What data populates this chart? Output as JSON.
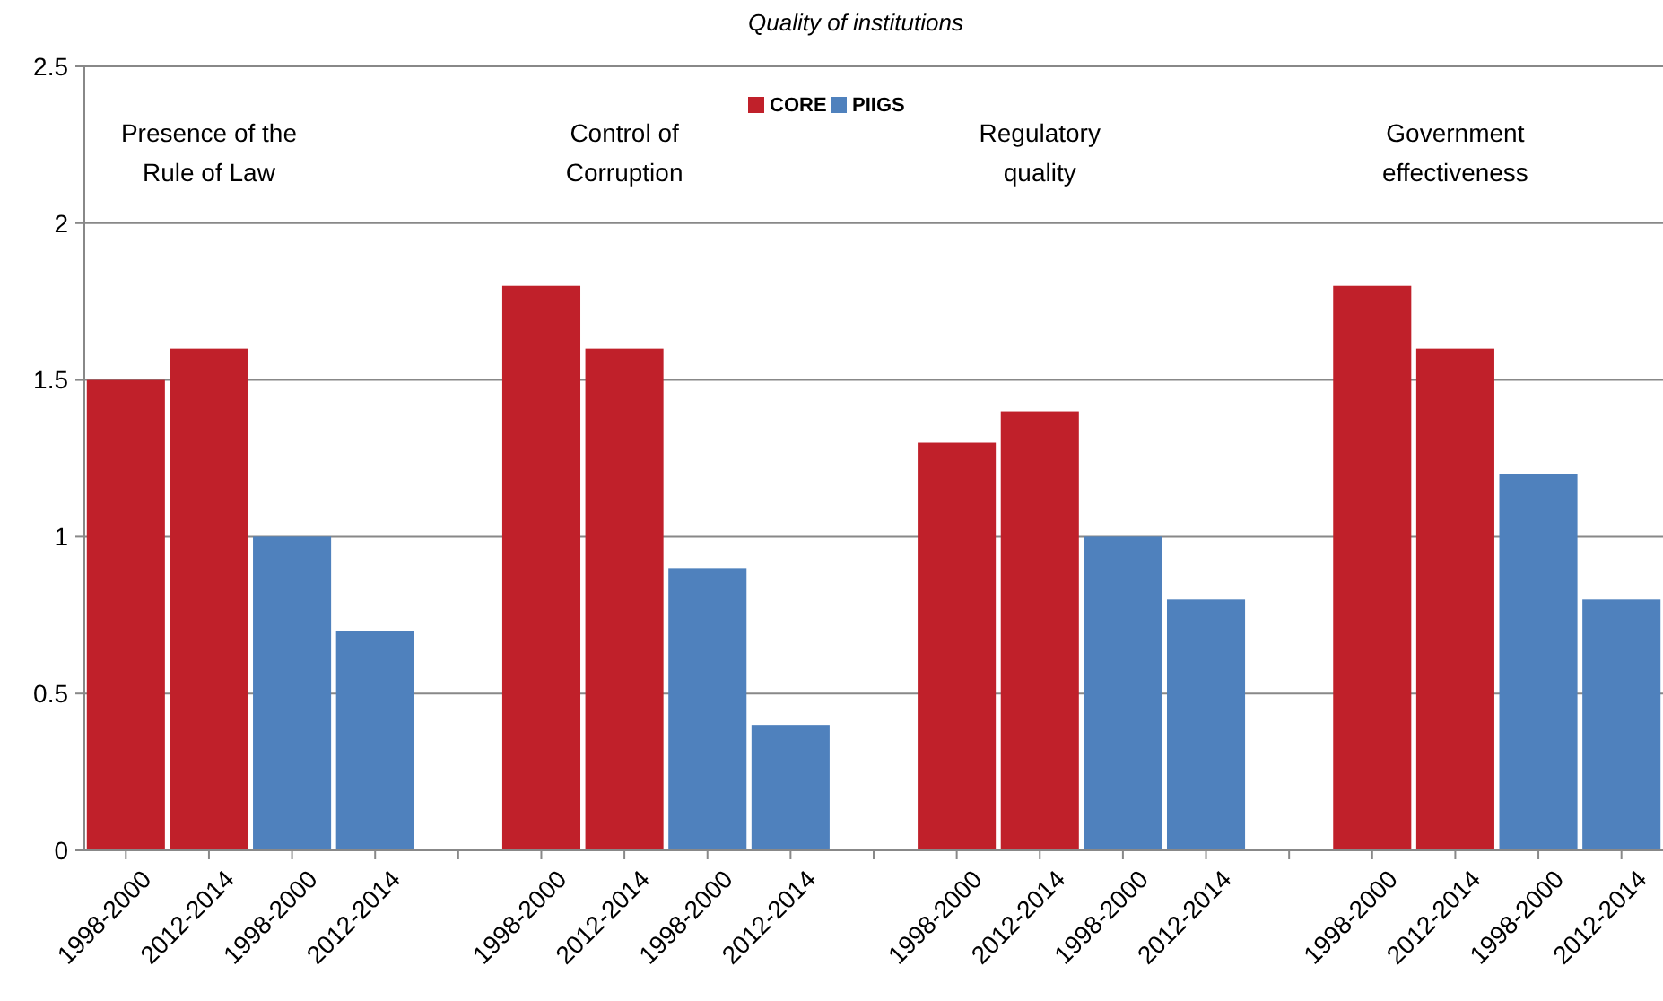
{
  "chart_data": {
    "type": "bar",
    "title": "Quality of institutions",
    "categories": [
      "1998-2000",
      "2012-2014",
      "1998-2000",
      "2012-2014",
      null,
      "1998-2000",
      "2012-2014",
      "1998-2000",
      "2012-2014",
      null,
      "1998-2000",
      "2012-2014",
      "1998-2000",
      "2012-2014",
      null,
      "1998-2000",
      "2012-2014",
      "1998-2000",
      "2012-2014"
    ],
    "series": [
      {
        "name": "CORE",
        "color": "#c0202a",
        "values": [
          1.5,
          1.6,
          null,
          null,
          null,
          1.8,
          1.6,
          null,
          null,
          null,
          1.3,
          1.4,
          null,
          null,
          null,
          1.8,
          1.6,
          null,
          null
        ]
      },
      {
        "name": "PIIGS",
        "color": "#4f81bd",
        "values": [
          null,
          null,
          1.0,
          0.7,
          null,
          null,
          null,
          0.9,
          0.4,
          null,
          null,
          null,
          1.0,
          0.8,
          null,
          null,
          null,
          1.2,
          0.8
        ]
      }
    ],
    "annotations": [
      "Presence of the\nRule of Law",
      "Control of\nCorruption",
      "Regulatory\nquality",
      "Government\neffectiveness"
    ],
    "ylim": [
      0,
      2.5
    ],
    "yticks": [
      0,
      0.5,
      1,
      1.5,
      2,
      2.5
    ],
    "grid": "y",
    "legend": "top"
  }
}
